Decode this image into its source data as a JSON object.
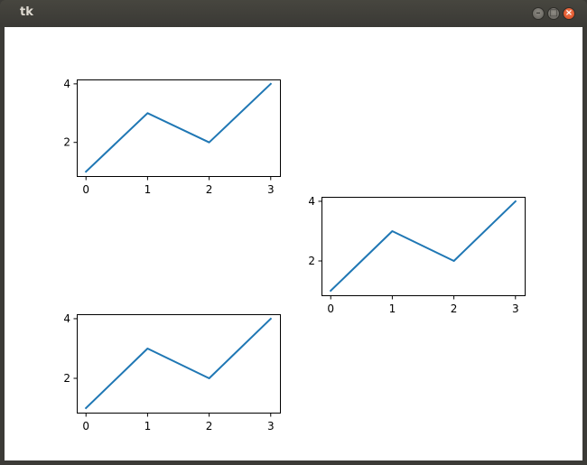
{
  "window": {
    "title": "tk",
    "controls": {
      "minimize_icon": "minimize-icon",
      "maximize_icon": "maximize-icon",
      "close_icon": "close-icon"
    }
  },
  "colors": {
    "line": "#1f77b4",
    "close_button": "#e95420"
  },
  "chart_data": [
    {
      "type": "line",
      "x": [
        0,
        1,
        2,
        3
      ],
      "series": [
        {
          "values": [
            1,
            3,
            2,
            4
          ]
        }
      ],
      "xticks": [
        "0",
        "1",
        "2",
        "3"
      ],
      "yticks": [
        "2",
        "4"
      ],
      "xlim": [
        -0.15,
        3.15
      ],
      "ylim": [
        0.85,
        4.15
      ],
      "grid": false
    },
    {
      "type": "line",
      "x": [
        0,
        1,
        2,
        3
      ],
      "series": [
        {
          "values": [
            1,
            3,
            2,
            4
          ]
        }
      ],
      "xticks": [
        "0",
        "1",
        "2",
        "3"
      ],
      "yticks": [
        "2",
        "4"
      ],
      "xlim": [
        -0.15,
        3.15
      ],
      "ylim": [
        0.85,
        4.15
      ],
      "grid": false
    },
    {
      "type": "line",
      "x": [
        0,
        1,
        2,
        3
      ],
      "series": [
        {
          "values": [
            1,
            3,
            2,
            4
          ]
        }
      ],
      "xticks": [
        "0",
        "1",
        "2",
        "3"
      ],
      "yticks": [
        "2",
        "4"
      ],
      "xlim": [
        -0.15,
        3.15
      ],
      "ylim": [
        0.85,
        4.15
      ],
      "grid": false
    }
  ]
}
